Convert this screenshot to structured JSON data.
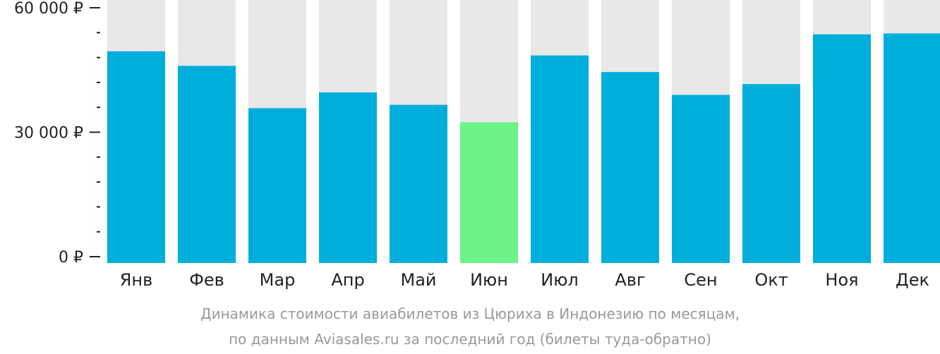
{
  "chart_data": {
    "type": "bar",
    "categories": [
      "Янв",
      "Фев",
      "Мар",
      "Апр",
      "Май",
      "Июн",
      "Июл",
      "Авг",
      "Сен",
      "Окт",
      "Ноя",
      "Дек"
    ],
    "values": [
      49500,
      46000,
      35800,
      39600,
      36600,
      32400,
      48500,
      44500,
      39000,
      41600,
      53600,
      53800
    ],
    "highlight_index": 5,
    "ylim": [
      0,
      62000
    ],
    "yticks": [
      {
        "value": 60000,
        "label": "60 000 ₽"
      },
      {
        "value": 30000,
        "label": "30 000 ₽"
      },
      {
        "value": 0,
        "label": "0 ₽"
      }
    ],
    "minor_tick_step": 6000,
    "grid": false,
    "title": "",
    "xlabel": "",
    "ylabel": ""
  },
  "caption": {
    "line1": "Динамика стоимости авиабилетов из Цюриха в Индонезию по месяцам,",
    "line2": "по данным Aviasales.ru за последний год (билеты туда-обратно)"
  },
  "colors": {
    "bar": "#00aedc",
    "highlight": "#6cf287",
    "background_bar": "#e8e8e8",
    "axis": "#222222",
    "caption": "#999999"
  }
}
